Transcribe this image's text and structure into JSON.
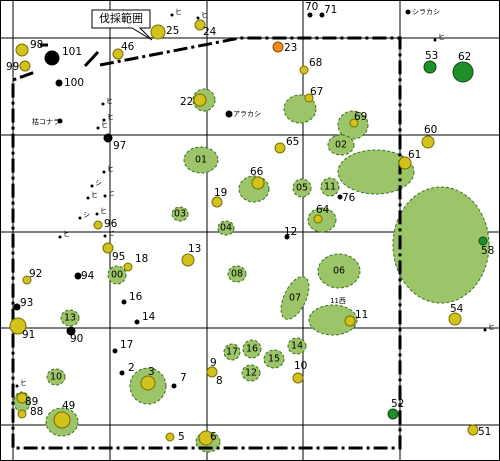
{
  "callout": "伐採範囲",
  "trees": [
    "98",
    "99",
    "101",
    "46",
    "25",
    "24",
    "70",
    "71",
    "シラカシ",
    "23",
    "68",
    "67",
    "53",
    "62",
    "100",
    "22",
    "アラカシ",
    "69",
    "枯コナラ",
    "97",
    "65",
    "60",
    "61",
    "66",
    "19",
    "76",
    "64",
    "96",
    "12",
    "13",
    "58",
    "95",
    "18",
    "92",
    "94",
    "11西",
    "11",
    "93",
    "16",
    "14",
    "54",
    "91",
    "90",
    "17",
    "2",
    "3",
    "7",
    "9",
    "8",
    "10",
    "89",
    "88",
    "49",
    "52",
    "51",
    "5",
    "6"
  ],
  "areas": [
    "01",
    "02",
    "03",
    "04",
    "05",
    "06",
    "07",
    "08",
    "10",
    "11",
    "12",
    "13",
    "14",
    "15",
    "16",
    "17",
    "00"
  ],
  "marks": [
    "ヒ",
    "ヒ",
    "ヒ",
    "ヒ",
    "ヒ",
    "ヒ",
    "ヒ",
    "シ",
    "ヒ",
    "ヒ",
    "シ",
    "ヒ",
    "ヒ",
    "ヒ",
    "ヒ",
    "ヒ"
  ]
}
